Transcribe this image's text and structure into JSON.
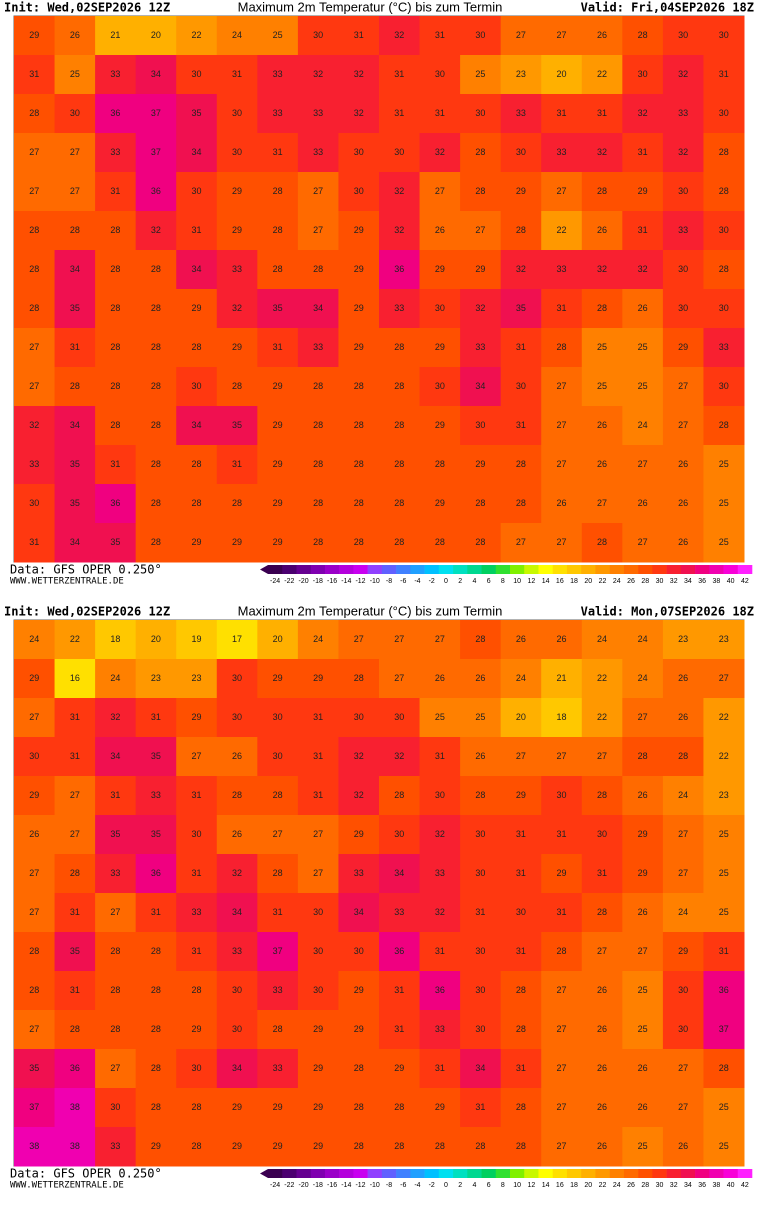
{
  "panels": [
    {
      "header": {
        "init": "Init: Wed,02SEP2026 12Z",
        "title": "Maximum 2m Temperatur (°C) bis zum Termin",
        "valid": "Valid: Fri,04SEP2026 18Z"
      },
      "grid": [
        [
          29,
          26,
          21,
          20,
          22,
          24,
          25,
          30,
          31,
          32,
          31,
          30,
          27,
          27,
          26,
          28,
          30,
          30
        ],
        [
          31,
          25,
          33,
          34,
          30,
          31,
          33,
          32,
          32,
          31,
          30,
          25,
          23,
          20,
          22,
          30,
          32,
          31
        ],
        [
          28,
          30,
          36,
          37,
          35,
          30,
          33,
          33,
          32,
          31,
          31,
          30,
          33,
          31,
          31,
          32,
          33,
          30
        ],
        [
          27,
          27,
          33,
          37,
          34,
          30,
          31,
          33,
          30,
          30,
          32,
          28,
          30,
          33,
          32,
          31,
          32,
          28
        ],
        [
          27,
          27,
          31,
          36,
          30,
          29,
          28,
          27,
          30,
          32,
          27,
          28,
          29,
          27,
          28,
          29,
          30,
          28
        ],
        [
          28,
          28,
          28,
          32,
          31,
          29,
          28,
          27,
          29,
          32,
          26,
          27,
          28,
          22,
          26,
          31,
          33,
          30
        ],
        [
          28,
          34,
          28,
          28,
          34,
          33,
          28,
          28,
          29,
          36,
          29,
          29,
          32,
          33,
          32,
          32,
          30,
          28
        ],
        [
          28,
          35,
          28,
          28,
          29,
          32,
          35,
          34,
          29,
          33,
          30,
          32,
          35,
          31,
          28,
          26,
          30,
          30
        ],
        [
          27,
          31,
          28,
          28,
          28,
          29,
          31,
          33,
          29,
          28,
          29,
          33,
          31,
          28,
          25,
          25,
          29,
          33
        ],
        [
          27,
          28,
          28,
          28,
          30,
          28,
          29,
          28,
          28,
          28,
          30,
          34,
          30,
          27,
          25,
          25,
          27,
          30
        ],
        [
          32,
          34,
          28,
          28,
          34,
          35,
          29,
          28,
          28,
          28,
          29,
          30,
          31,
          27,
          26,
          24,
          27,
          28
        ],
        [
          33,
          35,
          31,
          28,
          28,
          31,
          29,
          28,
          28,
          28,
          28,
          29,
          28,
          27,
          26,
          27,
          26,
          25
        ],
        [
          30,
          35,
          36,
          28,
          28,
          28,
          29,
          28,
          28,
          28,
          29,
          28,
          28,
          26,
          27,
          26,
          26,
          25
        ],
        [
          31,
          34,
          35,
          28,
          29,
          29,
          29,
          28,
          28,
          28,
          28,
          28,
          27,
          27,
          28,
          27,
          26,
          25
        ]
      ],
      "footer": {
        "data": "Data: GFS OPER 0.250°",
        "site": "WWW.WETTERZENTRALE.DE"
      },
      "colorbar": {
        "ticks": [
          -24,
          -22,
          -20,
          -18,
          -16,
          -14,
          -12,
          -10,
          -8,
          -6,
          -4,
          -2,
          0,
          2,
          4,
          6,
          8,
          10,
          12,
          14,
          16,
          18,
          20,
          22,
          24,
          26,
          28,
          30,
          32,
          34,
          36,
          38,
          40,
          42
        ],
        "colors": [
          "#3a0050",
          "#4b0070",
          "#650090",
          "#7f00b0",
          "#9a00c8",
          "#b400dc",
          "#c800f0",
          "#9040ff",
          "#6060ff",
          "#4080ff",
          "#20a0ff",
          "#00c0ff",
          "#00e0f0",
          "#00e0c0",
          "#00d890",
          "#00d060",
          "#30e030",
          "#80f000",
          "#c8f800",
          "#ffff00",
          "#ffe000",
          "#ffc800",
          "#ffb000",
          "#ff9800",
          "#ff8000",
          "#ff6a00",
          "#ff5000",
          "#ff3810",
          "#f82030",
          "#f01050",
          "#f00080",
          "#f000b0",
          "#f800d8",
          "#ff20ff"
        ]
      }
    },
    {
      "header": {
        "init": "Init: Wed,02SEP2026 12Z",
        "title": "Maximum 2m Temperatur (°C) bis zum Termin",
        "valid": "Valid: Mon,07SEP2026 18Z"
      },
      "grid": [
        [
          24,
          22,
          18,
          20,
          19,
          17,
          20,
          24,
          27,
          27,
          27,
          28,
          26,
          26,
          24,
          24,
          23,
          23
        ],
        [
          29,
          16,
          24,
          23,
          23,
          30,
          29,
          29,
          28,
          27,
          26,
          26,
          24,
          21,
          22,
          24,
          26,
          27
        ],
        [
          27,
          31,
          32,
          31,
          29,
          30,
          30,
          31,
          30,
          30,
          25,
          25,
          20,
          18,
          22,
          27,
          26,
          22
        ],
        [
          30,
          31,
          34,
          35,
          27,
          26,
          30,
          31,
          32,
          32,
          31,
          26,
          27,
          27,
          27,
          28,
          28,
          22
        ],
        [
          29,
          27,
          31,
          33,
          31,
          28,
          28,
          31,
          32,
          28,
          30,
          28,
          29,
          30,
          28,
          26,
          24,
          23
        ],
        [
          26,
          27,
          35,
          35,
          30,
          26,
          27,
          27,
          29,
          30,
          32,
          30,
          31,
          31,
          30,
          29,
          27,
          25
        ],
        [
          27,
          28,
          33,
          36,
          31,
          32,
          28,
          27,
          33,
          34,
          33,
          30,
          31,
          29,
          31,
          29,
          27,
          25
        ],
        [
          27,
          31,
          27,
          31,
          33,
          34,
          31,
          30,
          34,
          33,
          32,
          31,
          30,
          31,
          28,
          26,
          24,
          25
        ],
        [
          28,
          35,
          28,
          28,
          31,
          33,
          37,
          30,
          30,
          36,
          31,
          30,
          31,
          28,
          27,
          27,
          29,
          31
        ],
        [
          28,
          31,
          28,
          28,
          28,
          30,
          33,
          30,
          29,
          31,
          36,
          30,
          28,
          27,
          26,
          25,
          30,
          36
        ],
        [
          27,
          28,
          28,
          28,
          29,
          30,
          28,
          29,
          29,
          31,
          33,
          30,
          28,
          27,
          26,
          25,
          30,
          37
        ],
        [
          35,
          36,
          27,
          28,
          30,
          34,
          33,
          29,
          28,
          29,
          31,
          34,
          31,
          27,
          26,
          26,
          27,
          28
        ],
        [
          37,
          38,
          30,
          28,
          28,
          29,
          29,
          29,
          28,
          28,
          29,
          31,
          28,
          27,
          26,
          26,
          27,
          25
        ],
        [
          38,
          38,
          33,
          29,
          28,
          29,
          29,
          29,
          28,
          28,
          28,
          28,
          28,
          27,
          26,
          25,
          26,
          25
        ]
      ],
      "footer": {
        "data": "Data: GFS OPER 0.250°",
        "site": "WWW.WETTERZENTRALE.DE"
      },
      "colorbar": {
        "ticks": [
          -24,
          -22,
          -20,
          -18,
          -16,
          -14,
          -12,
          -10,
          -8,
          -6,
          -4,
          -2,
          0,
          2,
          4,
          6,
          8,
          10,
          12,
          14,
          16,
          18,
          20,
          22,
          24,
          26,
          28,
          30,
          32,
          34,
          36,
          38,
          40,
          42
        ],
        "colors": [
          "#3a0050",
          "#4b0070",
          "#650090",
          "#7f00b0",
          "#9a00c8",
          "#b400dc",
          "#c800f0",
          "#9040ff",
          "#6060ff",
          "#4080ff",
          "#20a0ff",
          "#00c0ff",
          "#00e0f0",
          "#00e0c0",
          "#00d890",
          "#00d060",
          "#30e030",
          "#80f000",
          "#c8f800",
          "#ffff00",
          "#ffe000",
          "#ffc800",
          "#ffb000",
          "#ff9800",
          "#ff8000",
          "#ff6a00",
          "#ff5000",
          "#ff3810",
          "#f82030",
          "#f01050",
          "#f00080",
          "#f000b0",
          "#f800d8",
          "#ff20ff"
        ]
      }
    }
  ]
}
